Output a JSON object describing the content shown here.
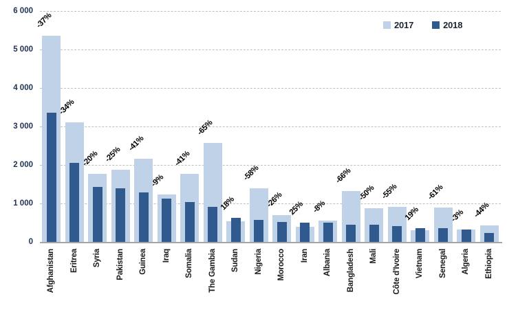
{
  "chart_data": {
    "type": "bar",
    "title": "",
    "xlabel": "",
    "ylabel": "",
    "categories": [
      "Afghanistan",
      "Eritrea",
      "Syria",
      "Pakistan",
      "Guinea",
      "Iraq",
      "Somalia",
      "The Gambia",
      "Sudan",
      "Nigeria",
      "Morocco",
      "Iran",
      "Albania",
      "Bangladesh",
      "Mali",
      "Côte d'Ivoire",
      "Vietnam",
      "Senegal",
      "Algeria",
      "Ethiopia"
    ],
    "series": [
      {
        "name": "2017",
        "color": "#c0d2e7",
        "values": [
          5350,
          3100,
          1770,
          1870,
          2160,
          1230,
          1760,
          2570,
          530,
          1390,
          700,
          400,
          545,
          1330,
          880,
          910,
          300,
          900,
          330,
          420
        ]
      },
      {
        "name": "2018",
        "color": "#30598e",
        "values": [
          3350,
          2050,
          1420,
          1400,
          1280,
          1120,
          1040,
          910,
          625,
          580,
          520,
          500,
          500,
          450,
          440,
          410,
          355,
          350,
          320,
          235
        ]
      }
    ],
    "change_labels": [
      "-37%",
      "-34%",
      "-20%",
      "-25%",
      "-41%",
      "-9%",
      "-41%",
      "-65%",
      "18%",
      "-58%",
      "-26%",
      "25%",
      "-8%",
      "-66%",
      "-50%",
      "-55%",
      "19%",
      "-61%",
      "-3%",
      "-44%"
    ],
    "ylim": [
      0,
      6000
    ],
    "ytick_interval": 1000,
    "ytick_labels": [
      "0",
      "1 000",
      "2 000",
      "3 000",
      "4 000",
      "5 000",
      "6 000"
    ],
    "grid": "horizontal-dashed",
    "legend_position": "top-right",
    "legend": [
      {
        "label": "2017",
        "color": "#c0d2e7"
      },
      {
        "label": "2018",
        "color": "#30598e"
      }
    ]
  },
  "colors": {
    "background": "#ffffff",
    "gridline": "#bfbfbf",
    "axis_line": "#a6a6a6",
    "ytick_text": "#1f3252",
    "category_text": "#1a1a1a",
    "pct_text": "#000000"
  }
}
